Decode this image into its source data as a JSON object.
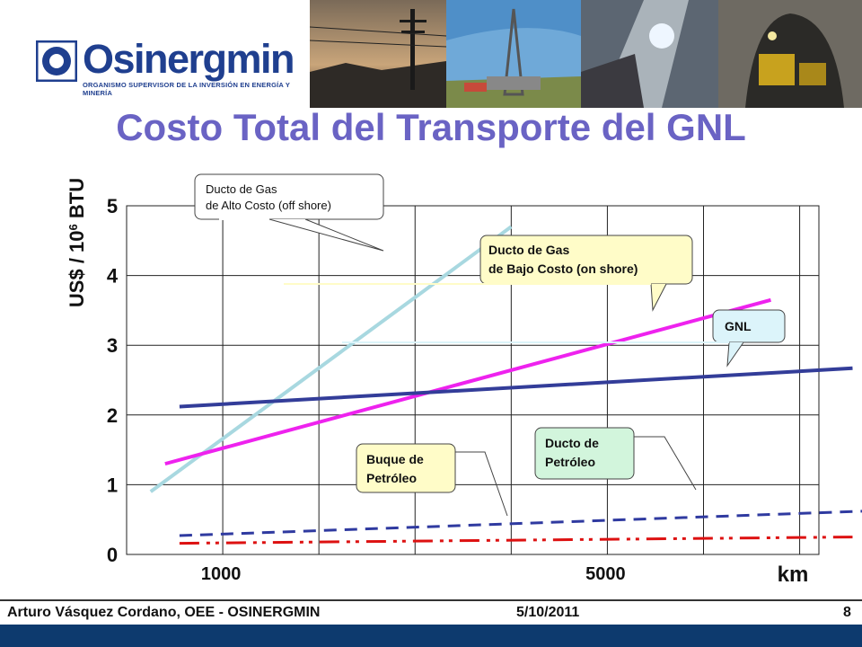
{
  "header": {
    "logo_text": "Osinergmin",
    "logo_subtitle": "ORGANISMO SUPERVISOR DE LA INVERSIÓN EN ENERGÍA Y MINERÍA"
  },
  "title": "Costo Total del Transporte del GNL",
  "chart_data": {
    "type": "line",
    "title": "Costo Total del Transporte del GNL",
    "ylabel": "US$ / 10^6 BTU",
    "xlabel": "km",
    "ylim": [
      0,
      5
    ],
    "xlim": [
      0,
      7200
    ],
    "x_ticks": [
      1000,
      5000
    ],
    "x_tick_labels": [
      "1000",
      "5000"
    ],
    "y_ticks": [
      0,
      1,
      2,
      3,
      4,
      5
    ],
    "y_tick_labels": [
      "0",
      "1",
      "2",
      "3",
      "4",
      "5"
    ],
    "grid": true,
    "series": [
      {
        "name": "Ducto de Gas de Alto Costo (off shore)",
        "color": "#a8d8e0",
        "style": "solid",
        "x": [
          250,
          4000
        ],
        "y": [
          0.9,
          4.7
        ]
      },
      {
        "name": "Ducto de Gas de Bajo Costo (on shore)",
        "color": "#ee22ee",
        "style": "solid",
        "x": [
          400,
          6700
        ],
        "y": [
          1.3,
          3.65
        ]
      },
      {
        "name": "GNL",
        "color": "#333d99",
        "style": "solid",
        "x": [
          550,
          7550
        ],
        "y": [
          2.12,
          2.67
        ]
      },
      {
        "name": "Ducto de Petróleo",
        "color": "#2f3aa0",
        "style": "dashed",
        "x": [
          550,
          7650
        ],
        "y": [
          0.27,
          0.62
        ]
      },
      {
        "name": "Buque de Petróleo",
        "color": "#dd1111",
        "style": "dashdotdot",
        "x": [
          550,
          7550
        ],
        "y": [
          0.16,
          0.25
        ]
      }
    ],
    "annotations": [
      {
        "line1": "Ducto de Gas",
        "line2": "de Alto Costo (off shore)",
        "bg": "#ffffff"
      },
      {
        "line1": "Ducto de Gas",
        "line2": "de Bajo Costo (on shore)",
        "bg": "#fffcc8"
      },
      {
        "line1": "GNL",
        "line2": "",
        "bg": "#dcf4fa"
      },
      {
        "line1": "Buque de",
        "line2": "Petróleo",
        "bg": "#fffcc8"
      },
      {
        "line1": "Ducto de",
        "line2": "Petróleo",
        "bg": "#d2f5dc"
      }
    ]
  },
  "footer": {
    "author": "Arturo Vásquez Cordano, OEE - OSINERGMIN",
    "date": "5/10/2011",
    "page": "8"
  }
}
